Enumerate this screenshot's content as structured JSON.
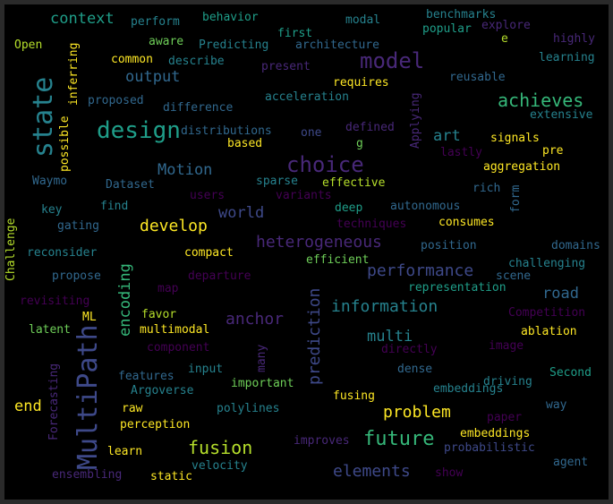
{
  "colors": {
    "background": "#000000",
    "palette": [
      "#fde725",
      "#b5de2b",
      "#6ece58",
      "#35b779",
      "#1f9e89",
      "#26828e",
      "#31688e",
      "#3e4989",
      "#482878",
      "#440154"
    ]
  },
  "words": [
    {
      "text": "MultiPath",
      "color": "#3e4989",
      "size": 30
    },
    {
      "text": "state",
      "color": "#26828e",
      "size": 30
    },
    {
      "text": "design",
      "color": "#1f9e89",
      "size": 26
    },
    {
      "text": "model",
      "color": "#482878",
      "size": 24
    },
    {
      "text": "choice",
      "color": "#482878",
      "size": 24
    },
    {
      "text": "future",
      "color": "#35b779",
      "size": 22
    },
    {
      "text": "fusion",
      "color": "#b5de2b",
      "size": 20
    },
    {
      "text": "achieves",
      "color": "#35b779",
      "size": 20
    },
    {
      "text": "heterogeneous",
      "color": "#482878",
      "size": 18
    },
    {
      "text": "performance",
      "color": "#3e4989",
      "size": 18
    },
    {
      "text": "information",
      "color": "#26828e",
      "size": 18
    },
    {
      "text": "prediction",
      "color": "#3e4989",
      "size": 18
    },
    {
      "text": "develop",
      "color": "#fde725",
      "size": 18
    },
    {
      "text": "anchor",
      "color": "#482878",
      "size": 18
    },
    {
      "text": "elements",
      "color": "#3e4989",
      "size": 18
    },
    {
      "text": "problem",
      "color": "#fde725",
      "size": 18
    },
    {
      "text": "context",
      "color": "#1f9e89",
      "size": 17
    },
    {
      "text": "output",
      "color": "#31688e",
      "size": 17
    },
    {
      "text": "Motion",
      "color": "#31688e",
      "size": 17
    },
    {
      "text": "world",
      "color": "#3e4989",
      "size": 17
    },
    {
      "text": "encoding",
      "color": "#35b779",
      "size": 17
    },
    {
      "text": "multi",
      "color": "#26828e",
      "size": 17
    },
    {
      "text": "road",
      "color": "#31688e",
      "size": 17
    },
    {
      "text": "art",
      "color": "#26828e",
      "size": 17
    },
    {
      "text": "end",
      "color": "#fde725",
      "size": 17
    },
    {
      "text": "perform",
      "color": "#26828e",
      "size": 13
    },
    {
      "text": "behavior",
      "color": "#1f9e89",
      "size": 13
    },
    {
      "text": "modal",
      "color": "#26828e",
      "size": 13
    },
    {
      "text": "benchmarks",
      "color": "#26828e",
      "size": 13
    },
    {
      "text": "popular",
      "color": "#1f9e89",
      "size": 13
    },
    {
      "text": "explore",
      "color": "#482878",
      "size": 13
    },
    {
      "text": "e",
      "color": "#b5de2b",
      "size": 13
    },
    {
      "text": "highly",
      "color": "#482878",
      "size": 13
    },
    {
      "text": "Open",
      "color": "#b5de2b",
      "size": 13
    },
    {
      "text": "aware",
      "color": "#6ece58",
      "size": 13
    },
    {
      "text": "first",
      "color": "#1f9e89",
      "size": 13
    },
    {
      "text": "Predicting",
      "color": "#26828e",
      "size": 13
    },
    {
      "text": "architecture",
      "color": "#31688e",
      "size": 13
    },
    {
      "text": "learning",
      "color": "#26828e",
      "size": 13
    },
    {
      "text": "common",
      "color": "#fde725",
      "size": 13
    },
    {
      "text": "describe",
      "color": "#26828e",
      "size": 13
    },
    {
      "text": "present",
      "color": "#482878",
      "size": 13
    },
    {
      "text": "reusable",
      "color": "#31688e",
      "size": 13
    },
    {
      "text": "requires",
      "color": "#fde725",
      "size": 13
    },
    {
      "text": "proposed",
      "color": "#31688e",
      "size": 13
    },
    {
      "text": "acceleration",
      "color": "#26828e",
      "size": 13
    },
    {
      "text": "difference",
      "color": "#31688e",
      "size": 13
    },
    {
      "text": "extensive",
      "color": "#26828e",
      "size": 13
    },
    {
      "text": "distributions",
      "color": "#31688e",
      "size": 13
    },
    {
      "text": "one",
      "color": "#3e4989",
      "size": 13
    },
    {
      "text": "defined",
      "color": "#482878",
      "size": 13
    },
    {
      "text": "signals",
      "color": "#fde725",
      "size": 13
    },
    {
      "text": "pre",
      "color": "#fde725",
      "size": 13
    },
    {
      "text": "based",
      "color": "#fde725",
      "size": 13
    },
    {
      "text": "g",
      "color": "#6ece58",
      "size": 13
    },
    {
      "text": "lastly",
      "color": "#440154",
      "size": 13
    },
    {
      "text": "aggregation",
      "color": "#fde725",
      "size": 13
    },
    {
      "text": "Waymo",
      "color": "#31688e",
      "size": 13
    },
    {
      "text": "Dataset",
      "color": "#31688e",
      "size": 13
    },
    {
      "text": "sparse",
      "color": "#26828e",
      "size": 13
    },
    {
      "text": "effective",
      "color": "#b5de2b",
      "size": 13
    },
    {
      "text": "rich",
      "color": "#31688e",
      "size": 13
    },
    {
      "text": "users",
      "color": "#440154",
      "size": 13
    },
    {
      "text": "variants",
      "color": "#440154",
      "size": 13
    },
    {
      "text": "key",
      "color": "#26828e",
      "size": 13
    },
    {
      "text": "find",
      "color": "#26828e",
      "size": 13
    },
    {
      "text": "deep",
      "color": "#1f9e89",
      "size": 13
    },
    {
      "text": "autonomous",
      "color": "#31688e",
      "size": 13
    },
    {
      "text": "gating",
      "color": "#31688e",
      "size": 13
    },
    {
      "text": "techniques",
      "color": "#440154",
      "size": 13
    },
    {
      "text": "consumes",
      "color": "#fde725",
      "size": 13
    },
    {
      "text": "reconsider",
      "color": "#26828e",
      "size": 13
    },
    {
      "text": "compact",
      "color": "#fde725",
      "size": 13
    },
    {
      "text": "position",
      "color": "#31688e",
      "size": 13
    },
    {
      "text": "domains",
      "color": "#31688e",
      "size": 13
    },
    {
      "text": "efficient",
      "color": "#6ece58",
      "size": 13
    },
    {
      "text": "challenging",
      "color": "#26828e",
      "size": 13
    },
    {
      "text": "propose",
      "color": "#31688e",
      "size": 13
    },
    {
      "text": "departure",
      "color": "#440154",
      "size": 13
    },
    {
      "text": "scene",
      "color": "#31688e",
      "size": 13
    },
    {
      "text": "revisiting",
      "color": "#440154",
      "size": 13
    },
    {
      "text": "map",
      "color": "#440154",
      "size": 13
    },
    {
      "text": "representation",
      "color": "#1f9e89",
      "size": 13
    },
    {
      "text": "ML",
      "color": "#fde725",
      "size": 13
    },
    {
      "text": "favor",
      "color": "#b5de2b",
      "size": 13
    },
    {
      "text": "Competition",
      "color": "#440154",
      "size": 13
    },
    {
      "text": "latent",
      "color": "#6ece58",
      "size": 13
    },
    {
      "text": "multimodal",
      "color": "#fde725",
      "size": 13
    },
    {
      "text": "ablation",
      "color": "#fde725",
      "size": 13
    },
    {
      "text": "component",
      "color": "#440154",
      "size": 13
    },
    {
      "text": "directly",
      "color": "#440154",
      "size": 13
    },
    {
      "text": "image",
      "color": "#440154",
      "size": 13
    },
    {
      "text": "input",
      "color": "#26828e",
      "size": 13
    },
    {
      "text": "dense",
      "color": "#31688e",
      "size": 13
    },
    {
      "text": "Second",
      "color": "#1f9e89",
      "size": 13
    },
    {
      "text": "features",
      "color": "#31688e",
      "size": 13
    },
    {
      "text": "important",
      "color": "#6ece58",
      "size": 13
    },
    {
      "text": "embeddings",
      "color": "#26828e",
      "size": 13
    },
    {
      "text": "driving",
      "color": "#26828e",
      "size": 13
    },
    {
      "text": "Argoverse",
      "color": "#26828e",
      "size": 13
    },
    {
      "text": "fusing",
      "color": "#fde725",
      "size": 13
    },
    {
      "text": "way",
      "color": "#31688e",
      "size": 13
    },
    {
      "text": "raw",
      "color": "#fde725",
      "size": 13
    },
    {
      "text": "polylines",
      "color": "#26828e",
      "size": 13
    },
    {
      "text": "paper",
      "color": "#440154",
      "size": 13
    },
    {
      "text": "perception",
      "color": "#fde725",
      "size": 13
    },
    {
      "text": "embeddings",
      "color": "#fde725",
      "size": 13
    },
    {
      "text": "improves",
      "color": "#482878",
      "size": 13
    },
    {
      "text": "probabilistic",
      "color": "#3e4989",
      "size": 13
    },
    {
      "text": "learn",
      "color": "#fde725",
      "size": 13
    },
    {
      "text": "velocity",
      "color": "#26828e",
      "size": 13
    },
    {
      "text": "agent",
      "color": "#31688e",
      "size": 13
    },
    {
      "text": "ensembling",
      "color": "#482878",
      "size": 13
    },
    {
      "text": "static",
      "color": "#fde725",
      "size": 13
    },
    {
      "text": "show",
      "color": "#440154",
      "size": 13
    },
    {
      "text": "inferring",
      "color": "#fde725",
      "size": 13
    },
    {
      "text": "possible",
      "color": "#fde725",
      "size": 13
    },
    {
      "text": "Applying",
      "color": "#482878",
      "size": 13
    },
    {
      "text": "form",
      "color": "#31688e",
      "size": 13
    },
    {
      "text": "Challenge",
      "color": "#b5de2b",
      "size": 13
    },
    {
      "text": "many",
      "color": "#482878",
      "size": 13
    },
    {
      "text": "Forecasting",
      "color": "#482878",
      "size": 13
    }
  ]
}
